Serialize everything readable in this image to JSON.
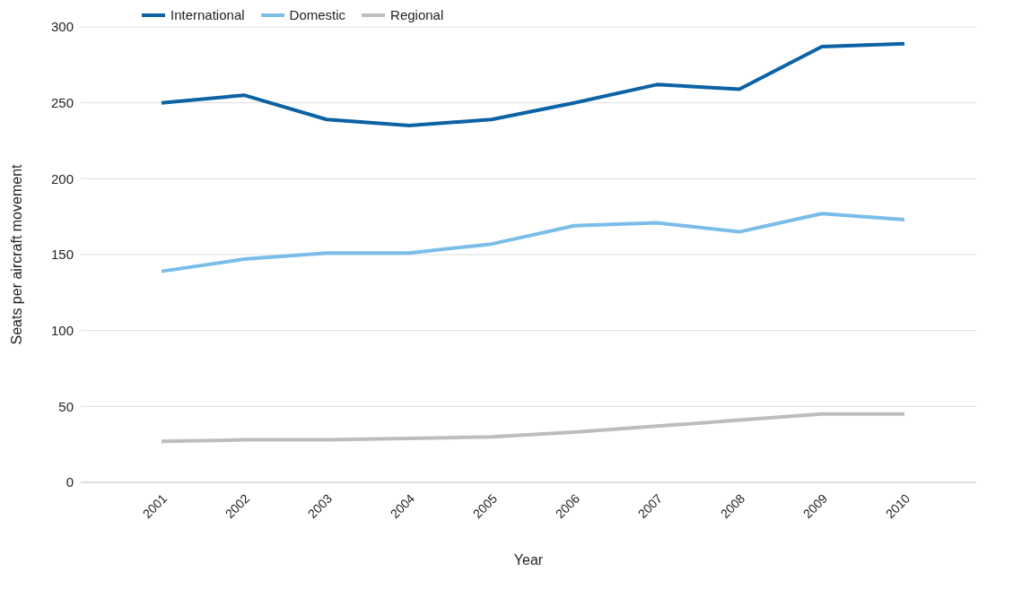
{
  "chart_data": {
    "type": "line",
    "xlabel": "Year",
    "ylabel": "Seats per aircraft movement",
    "categories": [
      "2001",
      "2002",
      "2003",
      "2004",
      "2005",
      "2006",
      "2007",
      "2008",
      "2009",
      "2010"
    ],
    "series": [
      {
        "name": "International",
        "color": "#0b62a4",
        "values": [
          250,
          255,
          239,
          235,
          239,
          250,
          262,
          259,
          287,
          289
        ]
      },
      {
        "name": "Domestic",
        "color": "#7abde8",
        "values": [
          139,
          147,
          151,
          151,
          157,
          169,
          171,
          165,
          177,
          173
        ]
      },
      {
        "name": "Regional",
        "color": "#bdbdbd",
        "values": [
          27,
          28,
          28,
          29,
          30,
          33,
          37,
          41,
          45,
          45
        ]
      }
    ],
    "ylim": [
      0,
      300
    ],
    "yticks": [
      0,
      50,
      100,
      150,
      200,
      250,
      300
    ],
    "grid": "y",
    "legend": "top left",
    "marker": "none",
    "line_style": "solid"
  }
}
